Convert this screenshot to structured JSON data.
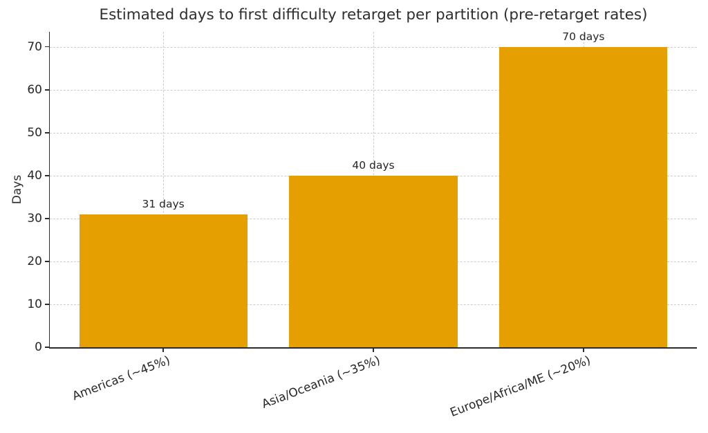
{
  "chart_data": {
    "type": "bar",
    "title": "Estimated days to first difficulty retarget per partition (pre-retarget rates)",
    "xlabel": "",
    "ylabel": "Days",
    "categories": [
      "Americas (~45%)",
      "Asia/Oceania (~35%)",
      "Europe/Africa/ME (~20%)"
    ],
    "values": [
      31,
      40,
      70
    ],
    "bar_labels": [
      "31 days",
      "40 days",
      "70 days"
    ],
    "yticks": [
      0,
      10,
      20,
      30,
      40,
      50,
      60,
      70
    ],
    "ylim": [
      0,
      73.5
    ],
    "grid": true,
    "grid_style": "dashed",
    "legend_position": "none",
    "colors": {
      "bar": "#E69F00",
      "grid": "#cccccc",
      "axis": "#2b2b2b",
      "text": "#262626"
    }
  }
}
